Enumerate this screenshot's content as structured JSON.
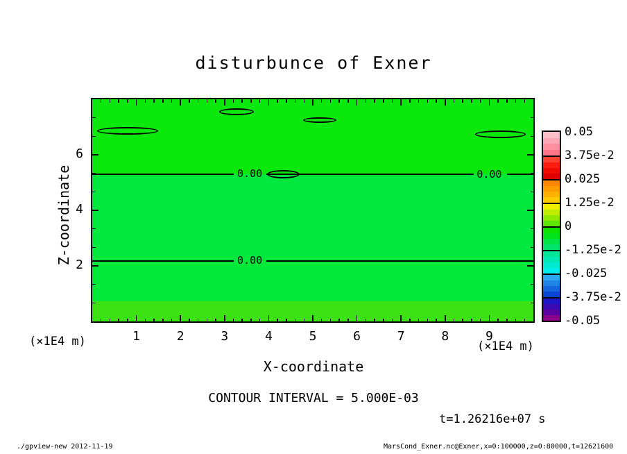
{
  "title": "disturbunce of Exner",
  "axes": {
    "x_label": "X-coordinate",
    "z_label": "Z-coordinate",
    "x_unit_left": "(×1E4 m)",
    "x_unit_right": "(×1E4 m)",
    "x_ticks": [
      "1",
      "2",
      "3",
      "4",
      "5",
      "6",
      "7",
      "8",
      "9"
    ],
    "z_ticks": [
      "2",
      "4",
      "6"
    ]
  },
  "colorbar": {
    "labels": [
      "0.05",
      "3.75e-2",
      "0.025",
      "1.25e-2",
      "0",
      "-1.25e-2",
      "-0.025",
      "-3.75e-2",
      "-0.05"
    ],
    "blocks": [
      [
        "#FFBECA",
        "#FFA6B4",
        "#FF8E9E",
        "#FF7688"
      ],
      [
        "#FF4130",
        "#FC1E0E",
        "#F00A00",
        "#DE0000"
      ],
      [
        "#FF8700",
        "#FF9D00",
        "#FFB300",
        "#FFC900"
      ],
      [
        "#EEF000",
        "#BFEE00",
        "#8FE800",
        "#5BE600"
      ],
      [
        "#0CE400",
        "#00E41E",
        "#00E446",
        "#00E46E"
      ],
      [
        "#00E696",
        "#00E8B4",
        "#00EAD2",
        "#00ECEC"
      ],
      [
        "#2FA6F2",
        "#1F86E8",
        "#1566DE",
        "#0A46D4"
      ],
      [
        "#1E14C8",
        "#3C0AB4",
        "#5A00A0",
        "#8C008C"
      ]
    ]
  },
  "annotations": {
    "contour_interval": "CONTOUR INTERVAL = 5.000E-03",
    "time": "t=1.26216e+07 s",
    "footer_left": "./gpview-new  2012-11-19",
    "footer_right": "MarsCond_Exner.nc@Exner,x=0:100000,z=0:80000,t=12621600"
  },
  "chart_data": {
    "type": "heatmap",
    "title": "disturbunce of Exner",
    "xlabel": "X-coordinate",
    "ylabel": "Z-coordinate",
    "x_axis": {
      "range": [
        0,
        10
      ],
      "ticks": [
        1,
        2,
        3,
        4,
        5,
        6,
        7,
        8,
        9
      ],
      "unit": "(×1E4 m)",
      "extent_m": "x=0:100000"
    },
    "z_axis": {
      "range": [
        0,
        8
      ],
      "ticks": [
        2,
        4,
        6
      ],
      "unit": "(×1E4 m)",
      "extent_m": "z=0:80000"
    },
    "contour_interval": 0.005,
    "time_label": "t=1.26216e+07 s",
    "levels": [
      0.05,
      0.0375,
      0.025,
      0.0125,
      0,
      -0.0125,
      -0.025,
      -0.0375,
      -0.05
    ],
    "legend_position": "right",
    "grid": false,
    "bands": [
      {
        "z_from": 5.3,
        "z_to": 8.0,
        "color": "#0BE80B",
        "value": "slightly positive (0 to +3e-3)"
      },
      {
        "z_from": 2.18,
        "z_to": 5.3,
        "color": "#00E83E",
        "value": "slightly negative (0 to -3e-3)"
      },
      {
        "z_from": 0.72,
        "z_to": 2.18,
        "color": "#00E838",
        "value": "near zero"
      },
      {
        "z_from": 0.0,
        "z_to": 0.72,
        "color": "#3CE214",
        "value": "slightly positive step near surface"
      }
    ],
    "zero_contour_segments": [
      {
        "z": 5.3,
        "x_from": 0.0,
        "x_to": 3.2
      },
      {
        "z": 5.3,
        "x_from": 3.95,
        "x_to": 8.65
      },
      {
        "z": 5.3,
        "x_from": 9.4,
        "x_to": 10.0
      },
      {
        "z": 2.18,
        "x_from": 0.0,
        "x_to": 3.2
      },
      {
        "z": 2.18,
        "x_from": 3.95,
        "x_to": 10.0
      }
    ],
    "contour_labels": [
      {
        "text": "0.00",
        "x": 3.57,
        "z": 5.3
      },
      {
        "text": "0.00",
        "x": 9.0,
        "z": 5.28
      },
      {
        "text": "0.00",
        "x": 3.57,
        "z": 2.18
      }
    ],
    "closed_contours": [
      {
        "x_from": 0.11,
        "x_to": 1.49,
        "z_from": 6.72,
        "z_to": 7.0
      },
      {
        "x_from": 2.88,
        "x_to": 3.66,
        "z_from": 7.43,
        "z_to": 7.68
      },
      {
        "x_from": 4.78,
        "x_to": 5.53,
        "z_from": 7.15,
        "z_to": 7.35
      },
      {
        "x_from": 8.68,
        "x_to": 9.83,
        "z_from": 6.6,
        "z_to": 6.88
      },
      {
        "x_from": 3.96,
        "x_to": 4.7,
        "z_from": 5.15,
        "z_to": 5.45
      }
    ]
  }
}
